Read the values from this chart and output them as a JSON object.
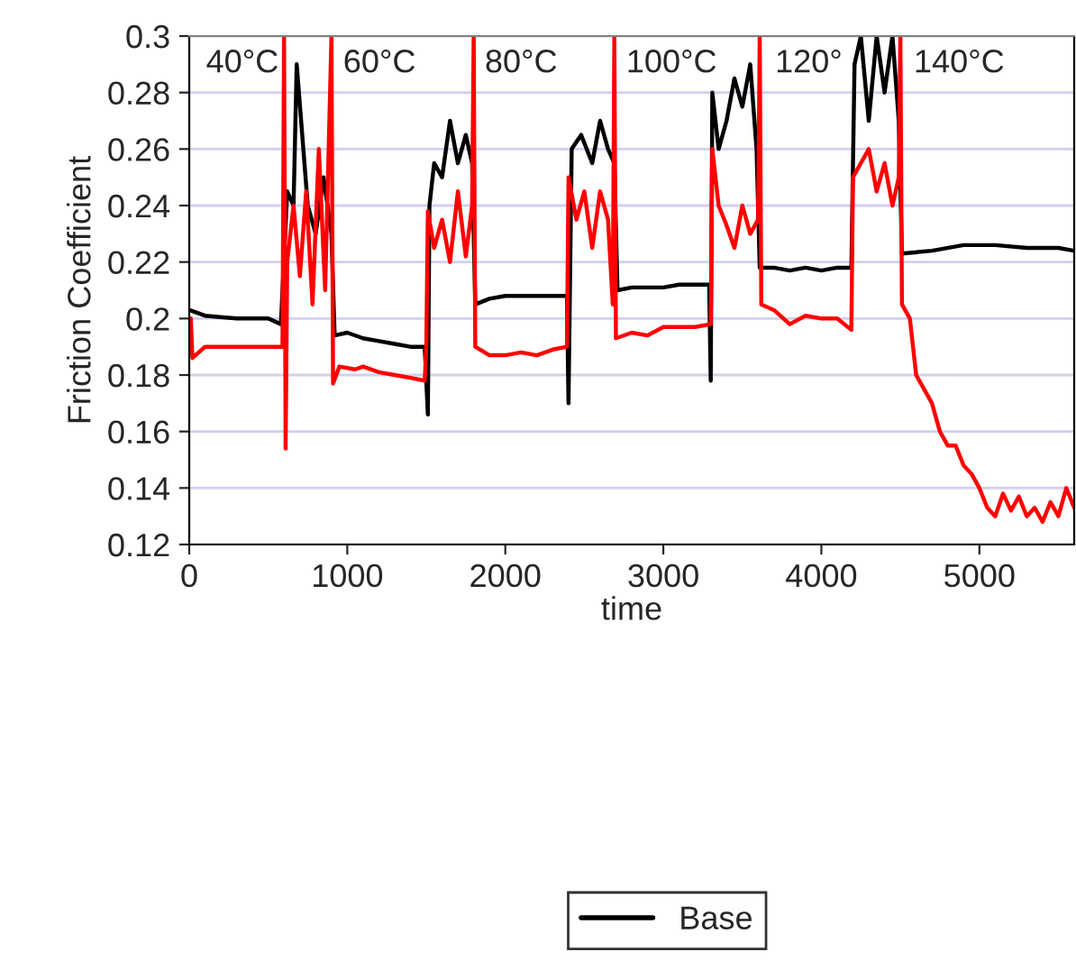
{
  "chart_data": {
    "type": "line",
    "xlabel": "time",
    "ylabel": "Friction Coefficient",
    "xlim": [
      0,
      5600
    ],
    "xticks": [
      0,
      1000,
      2000,
      3000,
      4000,
      5000
    ],
    "ylim": [
      0.12,
      0.3
    ],
    "yticks": [
      0.12,
      0.14,
      0.16,
      0.18,
      0.2,
      0.22,
      0.24,
      0.26,
      0.28,
      0.3
    ],
    "grid": "y",
    "legend": "bottom",
    "marker": "none",
    "line_style": "solid",
    "annotations": [
      "40°C",
      "60°C",
      "80°C",
      "100°C",
      "120°",
      "140°C"
    ],
    "series": [
      {
        "name": "Base",
        "color": "#000000",
        "x": [
          0,
          100,
          300,
          500,
          580,
          600,
          620,
          660,
          680,
          700,
          750,
          800,
          850,
          900,
          920,
          1000,
          1100,
          1200,
          1300,
          1400,
          1490,
          1510,
          1520,
          1550,
          1600,
          1650,
          1700,
          1750,
          1790,
          1810,
          1900,
          2000,
          2100,
          2200,
          2300,
          2390,
          2400,
          2420,
          2480,
          2550,
          2600,
          2650,
          2690,
          2710,
          2800,
          2900,
          3000,
          3100,
          3200,
          3290,
          3300,
          3310,
          3350,
          3400,
          3450,
          3500,
          3550,
          3590,
          3610,
          3700,
          3800,
          3900,
          4000,
          4100,
          4190,
          4210,
          4250,
          4300,
          4350,
          4400,
          4450,
          4490,
          4510,
          4700,
          4900,
          5100,
          5300,
          5500,
          5600
        ],
        "values": [
          0.203,
          0.201,
          0.2,
          0.2,
          0.198,
          null,
          0.245,
          0.24,
          0.29,
          null,
          0.24,
          0.23,
          0.25,
          0.23,
          0.194,
          0.195,
          0.193,
          0.192,
          0.191,
          0.19,
          0.19,
          0.166,
          0.24,
          0.255,
          0.25,
          0.27,
          0.255,
          0.265,
          0.255,
          0.205,
          0.207,
          0.208,
          0.208,
          0.208,
          0.208,
          0.208,
          0.17,
          0.26,
          0.265,
          0.255,
          0.27,
          0.26,
          0.255,
          0.21,
          0.211,
          0.211,
          0.211,
          0.212,
          0.212,
          0.212,
          0.178,
          0.28,
          0.26,
          0.27,
          0.285,
          0.275,
          0.29,
          0.26,
          0.218,
          0.218,
          0.217,
          0.218,
          0.217,
          0.218,
          0.218,
          0.29,
          0.3,
          0.27,
          0.3,
          0.28,
          0.3,
          0.27,
          0.223,
          0.224,
          0.226,
          0.226,
          0.225,
          0.225,
          0.224
        ]
      },
      {
        "color": "#ff0000",
        "x": [
          0,
          10,
          20,
          100,
          300,
          500,
          590,
          600,
          610,
          620,
          660,
          700,
          740,
          780,
          820,
          860,
          880,
          900,
          910,
          950,
          1050,
          1100,
          1200,
          1300,
          1400,
          1490,
          1500,
          1510,
          1550,
          1600,
          1650,
          1700,
          1750,
          1790,
          1800,
          1810,
          1900,
          2000,
          2100,
          2200,
          2300,
          2390,
          2400,
          2450,
          2500,
          2550,
          2600,
          2650,
          2680,
          2690,
          2700,
          2800,
          2900,
          3000,
          3100,
          3200,
          3300,
          3310,
          3350,
          3400,
          3450,
          3500,
          3550,
          3600,
          3610,
          3620,
          3700,
          3800,
          3900,
          4000,
          4100,
          4190,
          4200,
          4250,
          4300,
          4350,
          4400,
          4450,
          4490,
          4500,
          4510,
          4560,
          4600,
          4650,
          4700,
          4750,
          4800,
          4850,
          4900,
          4950,
          5000,
          5050,
          5100,
          5150,
          5200,
          5250,
          5300,
          5350,
          5400,
          5450,
          5500,
          5550,
          5600
        ],
        "values": [
          0.19,
          0.2,
          0.186,
          0.19,
          0.19,
          0.19,
          0.19,
          0.3,
          0.154,
          0.22,
          0.24,
          0.215,
          0.245,
          0.205,
          0.26,
          0.21,
          0.255,
          0.3,
          0.177,
          0.183,
          0.182,
          0.183,
          0.181,
          0.18,
          0.179,
          0.178,
          0.19,
          0.238,
          0.225,
          0.235,
          0.22,
          0.245,
          0.222,
          0.24,
          0.3,
          0.19,
          0.187,
          0.187,
          0.188,
          0.187,
          0.189,
          0.19,
          0.25,
          0.235,
          0.245,
          0.225,
          0.245,
          0.235,
          0.205,
          0.3,
          0.193,
          0.195,
          0.194,
          0.197,
          0.197,
          0.197,
          0.198,
          0.26,
          0.24,
          0.233,
          0.225,
          0.24,
          0.23,
          0.235,
          0.3,
          0.205,
          0.203,
          0.198,
          0.201,
          0.2,
          0.2,
          0.196,
          0.25,
          0.255,
          0.26,
          0.245,
          0.255,
          0.24,
          0.25,
          0.3,
          0.205,
          0.2,
          0.18,
          0.175,
          0.17,
          0.16,
          0.155,
          0.155,
          0.148,
          0.145,
          0.14,
          0.133,
          0.13,
          0.138,
          0.132,
          0.137,
          0.13,
          0.133,
          0.128,
          0.135,
          0.13,
          0.14,
          0.133
        ]
      }
    ]
  }
}
